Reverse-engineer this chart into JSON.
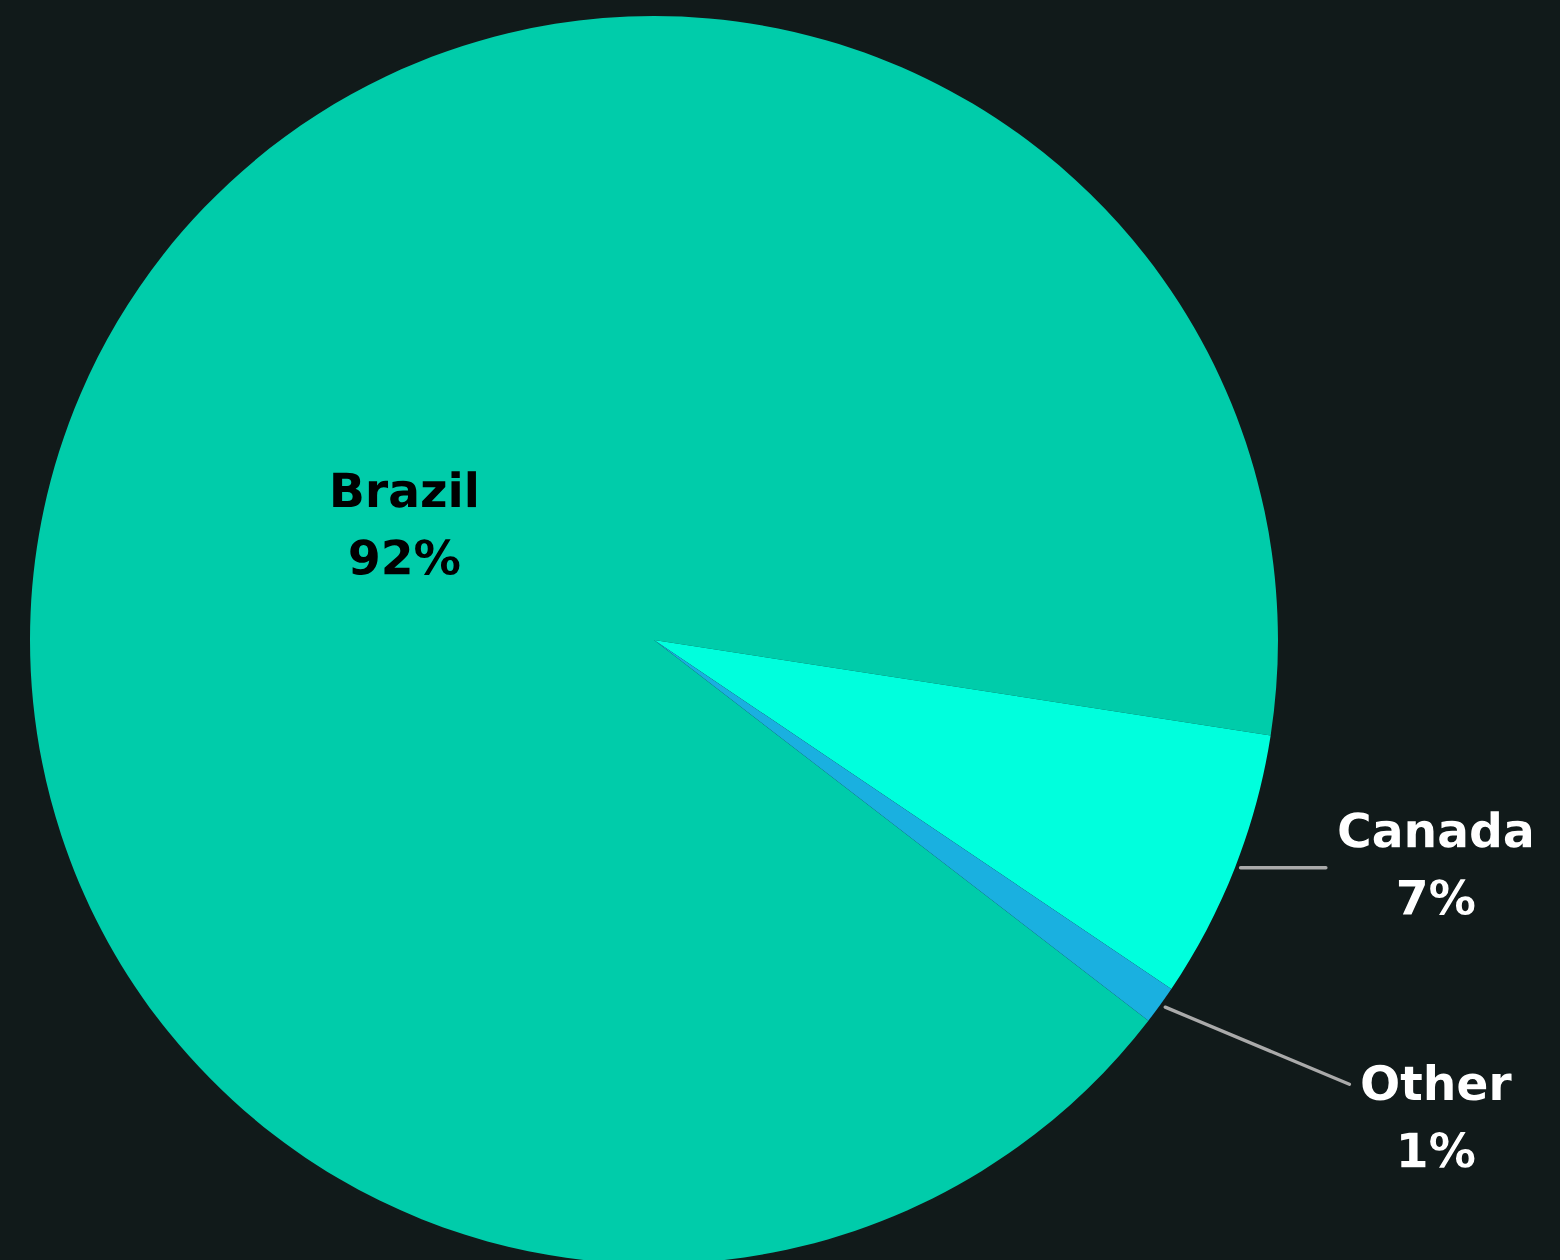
{
  "chart_data": {
    "type": "pie",
    "categories": [
      "Brazil",
      "Canada",
      "Other"
    ],
    "values": [
      92,
      7,
      1
    ],
    "colors": [
      "#00ccaa",
      "#00ffdd",
      "#1ab0e0"
    ],
    "value_labels": [
      "92%",
      "7%",
      "1%"
    ]
  }
}
